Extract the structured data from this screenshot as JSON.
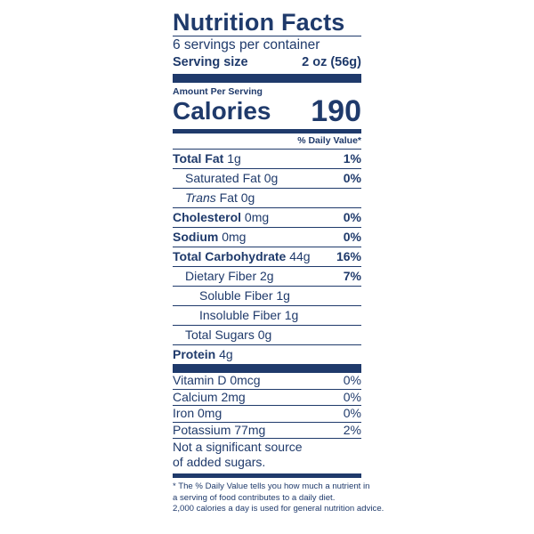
{
  "title": "Nutrition Facts",
  "servings_per_container": "6 servings per container",
  "serving_size_label": "Serving size",
  "serving_size_value": "2 oz (56g)",
  "amount_per_serving": "Amount Per Serving",
  "calories_label": "Calories",
  "calories_value": "190",
  "daily_value_header": "% Daily Value*",
  "nutrients": {
    "total_fat": {
      "label": "Total Fat",
      "amount": "1g",
      "dv": "1%"
    },
    "saturated_fat": {
      "label": "Saturated Fat 0g",
      "dv": "0%"
    },
    "trans_fat": {
      "label_italic": "Trans",
      "label_rest": " Fat 0g"
    },
    "cholesterol": {
      "label": "Cholesterol",
      "amount": "0mg",
      "dv": "0%"
    },
    "sodium": {
      "label": "Sodium",
      "amount": "0mg",
      "dv": "0%"
    },
    "total_carbohydrate": {
      "label": "Total Carbohydrate",
      "amount": "44g",
      "dv": "16%"
    },
    "dietary_fiber": {
      "label": "Dietary Fiber 2g",
      "dv": "7%"
    },
    "soluble_fiber": {
      "label": "Soluble Fiber 1g"
    },
    "insoluble_fiber": {
      "label": "Insoluble Fiber 1g"
    },
    "total_sugars": {
      "label": "Total Sugars 0g"
    },
    "protein": {
      "label": "Protein",
      "amount": "4g"
    }
  },
  "vitamins": [
    {
      "label": "Vitamin D 0mcg",
      "dv": "0%"
    },
    {
      "label": "Calcium 2mg",
      "dv": "0%"
    },
    {
      "label": "Iron 0mg",
      "dv": "0%"
    },
    {
      "label": "Potassium 77mg",
      "dv": "2%"
    }
  ],
  "added_sugars_note_line1": "Not a significant source",
  "added_sugars_note_line2": "of added sugars.",
  "footnote_line1": "* The % Daily Value tells you how much a nutrient in",
  "footnote_line2": "a serving of food contributes to a daily diet.",
  "footnote_line3": "2,000 calories a day is used for general nutrition advice.",
  "colors": {
    "ink": "#1f3a6b",
    "background": "#ffffff"
  }
}
